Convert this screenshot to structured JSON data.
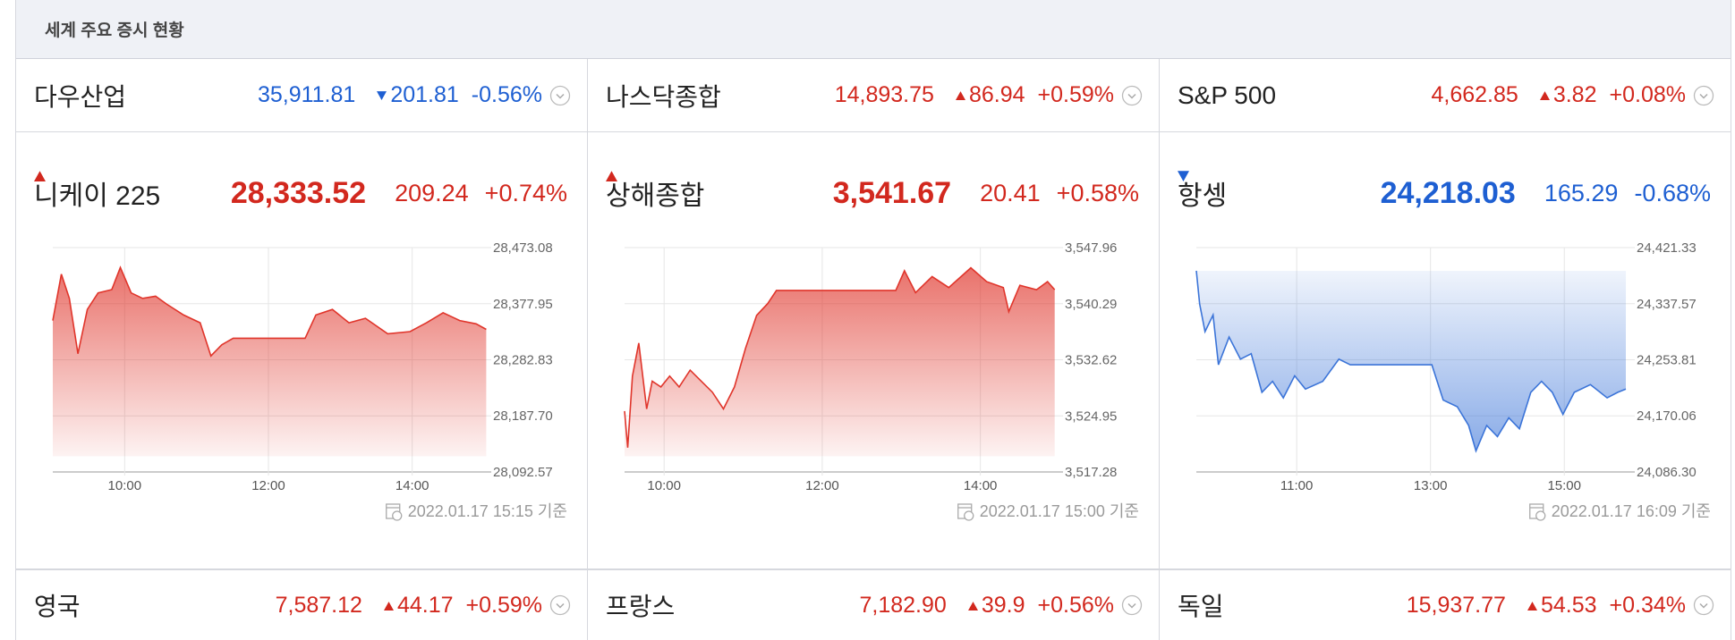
{
  "header": {
    "title": "세계 주요 증시 현황"
  },
  "top_row": [
    {
      "name": "다우산업",
      "value": "35,911.81",
      "change": "201.81",
      "change_pct": "-0.56%",
      "direction": "down"
    },
    {
      "name": "나스닥종합",
      "value": "14,893.75",
      "change": "86.94",
      "change_pct": "+0.59%",
      "direction": "up"
    },
    {
      "name": "S&P 500",
      "value": "4,662.85",
      "change": "3.82",
      "change_pct": "+0.08%",
      "direction": "up"
    }
  ],
  "panels": [
    {
      "name": "니케이 225",
      "value": "28,333.52",
      "change": "209.24",
      "change_pct": "+0.74%",
      "direction": "up",
      "timestamp": "2022.01.17 15:15 기준"
    },
    {
      "name": "상해종합",
      "value": "3,541.67",
      "change": "20.41",
      "change_pct": "+0.58%",
      "direction": "up",
      "timestamp": "2022.01.17 15:00 기준"
    },
    {
      "name": "항셍",
      "value": "24,218.03",
      "change": "165.29",
      "change_pct": "-0.68%",
      "direction": "down",
      "timestamp": "2022.01.17 16:09 기준"
    }
  ],
  "chart_data": [
    {
      "type": "line",
      "color": "#e0352b",
      "fill": "below",
      "x": [
        9.0,
        9.12,
        9.23,
        9.35,
        9.48,
        9.63,
        9.82,
        9.94,
        10.09,
        10.25,
        10.43,
        10.58,
        10.82,
        11.05,
        11.2,
        11.35,
        11.51,
        12.51,
        12.66,
        12.89,
        13.12,
        13.35,
        13.66,
        13.97,
        14.2,
        14.43,
        14.66,
        14.89,
        15.03
      ],
      "values": [
        28349.4,
        28428.1,
        28386.9,
        28293.2,
        28368.1,
        28396.2,
        28401.9,
        28439.3,
        28396.2,
        28386.9,
        28390.6,
        28377.5,
        28358.8,
        28345.6,
        28289.4,
        28308.2,
        28319.4,
        28319.4,
        28358.8,
        28368.1,
        28345.6,
        28353.1,
        28326.9,
        28330.6,
        28345.6,
        28362.5,
        28349.4,
        28343.8,
        28334.4
      ],
      "xlim": [
        9,
        15.05
      ],
      "xticks": [
        {
          "value": 10,
          "label": "10:00"
        },
        {
          "value": 12,
          "label": "12:00"
        },
        {
          "value": 14,
          "label": "14:00"
        }
      ],
      "ylim": [
        28092.57,
        28473.08
      ],
      "yticks": [
        {
          "value": 28092.57,
          "label": "28,092.57"
        },
        {
          "value": 28187.7,
          "label": "28,187.70"
        },
        {
          "value": 28282.83,
          "label": "28,282.83"
        },
        {
          "value": 28377.95,
          "label": "28,377.95"
        },
        {
          "value": 28473.08,
          "label": "28,473.08"
        }
      ]
    },
    {
      "type": "line",
      "color": "#e0352b",
      "fill": "below",
      "x": [
        9.5,
        9.54,
        9.6,
        9.68,
        9.78,
        9.85,
        9.96,
        10.07,
        10.19,
        10.33,
        10.47,
        10.61,
        10.75,
        10.89,
        11.03,
        11.17,
        11.31,
        11.42,
        12.93,
        13.04,
        13.18,
        13.39,
        13.6,
        13.88,
        14.08,
        14.29,
        14.36,
        14.5,
        14.71,
        14.85,
        14.94
      ],
      "values": [
        3525.6,
        3520.6,
        3530.4,
        3534.9,
        3525.9,
        3529.7,
        3528.9,
        3530.4,
        3528.9,
        3531.2,
        3529.7,
        3528.2,
        3525.9,
        3528.9,
        3534.2,
        3538.7,
        3540.3,
        3542.1,
        3542.1,
        3544.8,
        3541.8,
        3544.0,
        3542.5,
        3545.2,
        3543.3,
        3542.5,
        3539.2,
        3542.8,
        3542.2,
        3543.3,
        3542.2
      ],
      "xlim": [
        9.5,
        15
      ],
      "xticks": [
        {
          "value": 10,
          "label": "10:00"
        },
        {
          "value": 12,
          "label": "12:00"
        },
        {
          "value": 14,
          "label": "14:00"
        }
      ],
      "ylim": [
        3517.28,
        3547.96
      ],
      "yticks": [
        {
          "value": 3517.28,
          "label": "3,517.28"
        },
        {
          "value": 3524.95,
          "label": "3,524.95"
        },
        {
          "value": 3532.62,
          "label": "3,532.62"
        },
        {
          "value": 3540.29,
          "label": "3,540.29"
        },
        {
          "value": 3547.96,
          "label": "3,547.96"
        }
      ]
    },
    {
      "type": "line",
      "color": "#3b74d8",
      "fill": "above",
      "x": [
        9.5,
        9.55,
        9.63,
        9.75,
        9.83,
        9.99,
        10.16,
        10.32,
        10.48,
        10.64,
        10.8,
        10.97,
        11.13,
        11.39,
        11.63,
        11.8,
        13.02,
        13.19,
        13.4,
        13.57,
        13.68,
        13.84,
        14.0,
        14.17,
        14.33,
        14.5,
        14.66,
        14.82,
        14.98,
        15.15,
        15.39,
        15.64,
        15.8,
        15.92
      ],
      "values": [
        24386.7,
        24337.2,
        24295.9,
        24320.7,
        24246.4,
        24287.7,
        24254.7,
        24262.9,
        24205.2,
        24221.7,
        24196.9,
        24229.9,
        24210.1,
        24221.7,
        24254.7,
        24246.4,
        24246.4,
        24193.6,
        24183.7,
        24155.7,
        24117.7,
        24155.7,
        24139.2,
        24167.2,
        24150.8,
        24205.2,
        24221.7,
        24205.2,
        24172.2,
        24205.2,
        24216.7,
        24196.9,
        24205.2,
        24210.1
      ],
      "xlim": [
        9.5,
        16
      ],
      "xticks": [
        {
          "value": 11,
          "label": "11:00"
        },
        {
          "value": 13,
          "label": "13:00"
        },
        {
          "value": 15,
          "label": "15:00"
        }
      ],
      "ylim": [
        24086.3,
        24421.33
      ],
      "yticks": [
        {
          "value": 24086.3,
          "label": "24,086.30"
        },
        {
          "value": 24170.06,
          "label": "24,170.06"
        },
        {
          "value": 24253.81,
          "label": "24,253.81"
        },
        {
          "value": 24337.57,
          "label": "24,337.57"
        },
        {
          "value": 24421.33,
          "label": "24,421.33"
        }
      ]
    }
  ],
  "bottom_row": [
    {
      "name": "영국",
      "value": "7,587.12",
      "change": "44.17",
      "change_pct": "+0.59%",
      "direction": "up"
    },
    {
      "name": "프랑스",
      "value": "7,182.90",
      "change": "39.9",
      "change_pct": "+0.56%",
      "direction": "up"
    },
    {
      "name": "독일",
      "value": "15,937.77",
      "change": "54.53",
      "change_pct": "+0.34%",
      "direction": "up"
    }
  ]
}
